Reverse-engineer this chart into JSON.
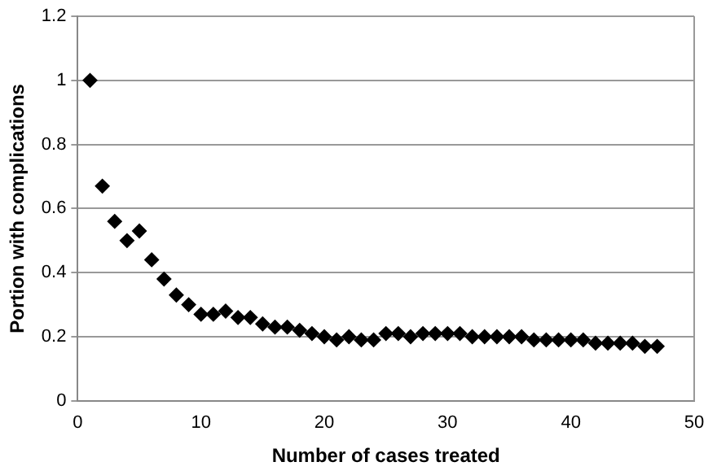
{
  "chart_data": {
    "type": "scatter",
    "xlabel": "Number of cases treated",
    "ylabel": "Portion with complications",
    "x": [
      1,
      2,
      3,
      4,
      5,
      6,
      7,
      8,
      9,
      10,
      11,
      12,
      13,
      14,
      15,
      16,
      17,
      18,
      19,
      20,
      21,
      22,
      23,
      24,
      25,
      26,
      27,
      28,
      29,
      30,
      31,
      32,
      33,
      34,
      35,
      36,
      37,
      38,
      39,
      40,
      41,
      42,
      43,
      44,
      45,
      46,
      47
    ],
    "series": [
      {
        "color": "#000000",
        "values": [
          1.0,
          0.67,
          0.56,
          0.5,
          0.53,
          0.44,
          0.38,
          0.33,
          0.3,
          0.27,
          0.27,
          0.28,
          0.26,
          0.26,
          0.24,
          0.23,
          0.23,
          0.22,
          0.21,
          0.2,
          0.19,
          0.2,
          0.19,
          0.19,
          0.21,
          0.21,
          0.2,
          0.21,
          0.21,
          0.21,
          0.21,
          0.2,
          0.2,
          0.2,
          0.2,
          0.2,
          0.19,
          0.19,
          0.19,
          0.19,
          0.19,
          0.18,
          0.18,
          0.18,
          0.18,
          0.17,
          0.17
        ]
      }
    ],
    "xlim": [
      0,
      50
    ],
    "xticks": [
      0,
      10,
      20,
      30,
      40,
      50
    ],
    "ylim": [
      0,
      1.2
    ],
    "yticks": [
      0,
      0.2,
      0.4,
      0.6,
      0.8,
      1,
      1.2
    ],
    "grid": "y",
    "legend": false,
    "marker": "diamond"
  }
}
